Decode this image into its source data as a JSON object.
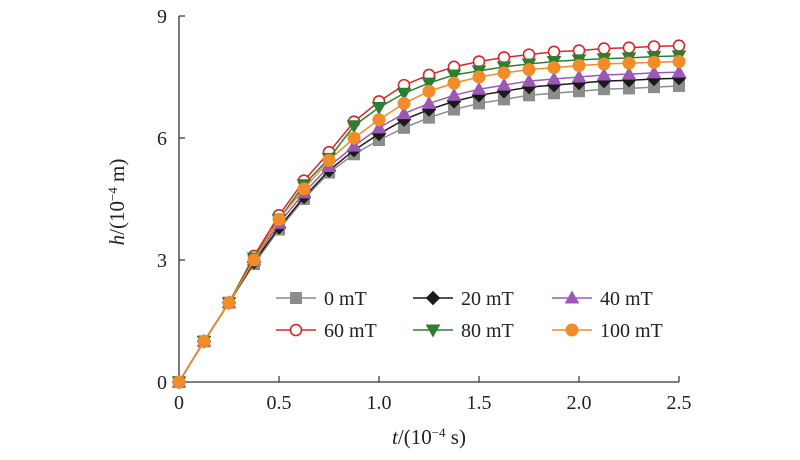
{
  "chart_data": {
    "type": "line",
    "title": "",
    "xlabel": {
      "var": "t",
      "text": "/(10",
      "sup": "−4",
      "unit": " s)"
    },
    "ylabel": {
      "var": "h",
      "text": "/(10",
      "sup": "−4",
      "unit": " m)"
    },
    "xlim": [
      0,
      2.5
    ],
    "ylim": [
      0,
      9
    ],
    "x_ticks": [
      "0",
      "0.5",
      "1.0",
      "1.5",
      "2.0",
      "2.5"
    ],
    "y_ticks": [
      "0",
      "3",
      "6",
      "9"
    ],
    "grid": false,
    "legend_position": "bottom-right",
    "x": [
      0,
      0.125,
      0.25,
      0.375,
      0.5,
      0.625,
      0.75,
      0.875,
      1.0,
      1.125,
      1.25,
      1.375,
      1.5,
      1.625,
      1.75,
      1.875,
      2.0,
      2.125,
      2.25,
      2.375,
      2.5
    ],
    "series": [
      {
        "name": "0 mT",
        "marker": "square",
        "color": "#8c8c8c",
        "fill": "#8c8c8c",
        "values": [
          0,
          1.0,
          1.95,
          2.9,
          3.75,
          4.5,
          5.15,
          5.6,
          5.95,
          6.25,
          6.5,
          6.7,
          6.85,
          6.95,
          7.05,
          7.1,
          7.15,
          7.2,
          7.22,
          7.25,
          7.28
        ]
      },
      {
        "name": "20 mT",
        "marker": "diamond",
        "color": "#1a1a1a",
        "fill": "#1a1a1a",
        "values": [
          0,
          1.0,
          1.95,
          2.95,
          3.8,
          4.55,
          5.2,
          5.7,
          6.1,
          6.45,
          6.7,
          6.9,
          7.05,
          7.15,
          7.25,
          7.3,
          7.35,
          7.4,
          7.42,
          7.45,
          7.47
        ]
      },
      {
        "name": "40 mT",
        "marker": "triangle-up",
        "color": "#9b59b6",
        "fill": "#9b59b6",
        "values": [
          0,
          1.0,
          1.95,
          3.0,
          3.9,
          4.65,
          5.3,
          5.8,
          6.25,
          6.6,
          6.85,
          7.05,
          7.2,
          7.3,
          7.4,
          7.45,
          7.5,
          7.55,
          7.57,
          7.6,
          7.62
        ]
      },
      {
        "name": "60 mT",
        "marker": "circle-open",
        "color": "#d62728",
        "fill": "#ffffff",
        "values": [
          0,
          1.0,
          1.95,
          3.1,
          4.1,
          4.95,
          5.65,
          6.4,
          6.9,
          7.3,
          7.55,
          7.75,
          7.88,
          7.98,
          8.05,
          8.12,
          8.15,
          8.2,
          8.22,
          8.25,
          8.27
        ]
      },
      {
        "name": "80 mT",
        "marker": "triangle-down",
        "color": "#2e7d32",
        "fill": "#2e7d32",
        "values": [
          0,
          1.0,
          1.95,
          3.05,
          4.0,
          4.85,
          5.5,
          6.3,
          6.75,
          7.1,
          7.35,
          7.55,
          7.65,
          7.75,
          7.82,
          7.88,
          7.92,
          7.95,
          7.97,
          8.0,
          8.02
        ]
      },
      {
        "name": "100 mT",
        "marker": "circle",
        "color": "#f28c28",
        "fill": "#f28c28",
        "values": [
          0,
          1.0,
          1.95,
          3.0,
          4.0,
          4.75,
          5.45,
          6.0,
          6.45,
          6.85,
          7.15,
          7.35,
          7.5,
          7.6,
          7.68,
          7.73,
          7.78,
          7.82,
          7.84,
          7.86,
          7.88
        ]
      }
    ]
  }
}
